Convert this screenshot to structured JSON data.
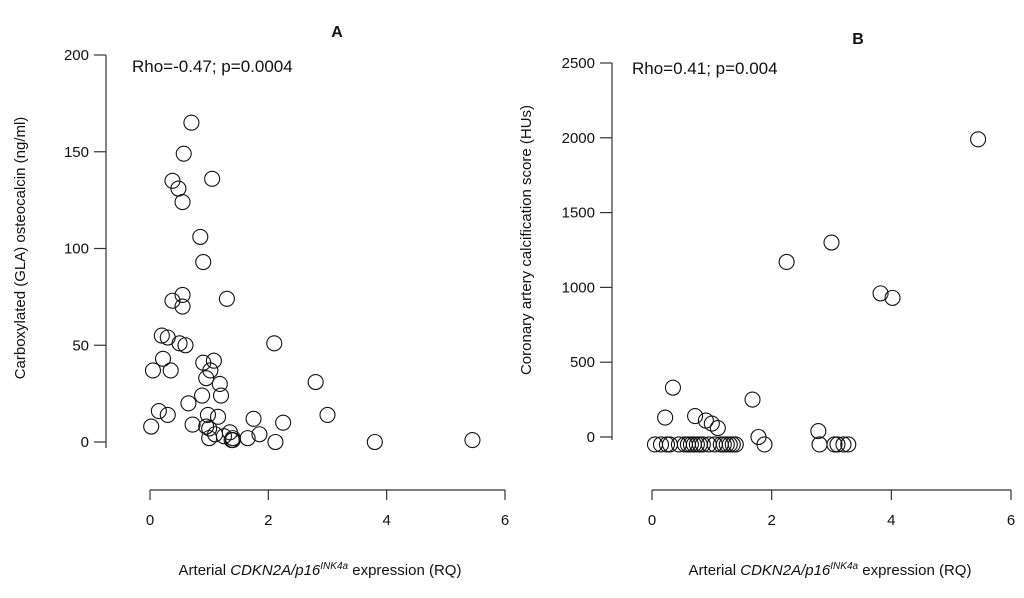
{
  "chart_data": [
    {
      "type": "scatter",
      "panel_label": "A",
      "annotation": "Rho=-0.47; p=0.0004",
      "ylabel": "Carboxylated (GLA) osteocalcin (ng/ml)",
      "xlabel_parts": [
        "Arterial ",
        "CDKN2A/p16",
        "INK4a",
        " expression (RQ)"
      ],
      "xlim": [
        0,
        6
      ],
      "ylim": [
        0,
        200
      ],
      "xticks": [
        0,
        2,
        4,
        6
      ],
      "yticks": [
        0,
        50,
        100,
        150,
        200
      ],
      "grid": false,
      "series": [
        {
          "points": [
            [
              0.02,
              8
            ],
            [
              0.05,
              37
            ],
            [
              0.15,
              16
            ],
            [
              0.2,
              55
            ],
            [
              0.22,
              43
            ],
            [
              0.3,
              14
            ],
            [
              0.3,
              54
            ],
            [
              0.35,
              37
            ],
            [
              0.38,
              135
            ],
            [
              0.38,
              73
            ],
            [
              0.48,
              131
            ],
            [
              0.5,
              51
            ],
            [
              0.55,
              70
            ],
            [
              0.55,
              76
            ],
            [
              0.55,
              124
            ],
            [
              0.57,
              149
            ],
            [
              0.6,
              50
            ],
            [
              0.65,
              20
            ],
            [
              0.7,
              165
            ],
            [
              0.72,
              9
            ],
            [
              0.85,
              106
            ],
            [
              0.88,
              24
            ],
            [
              0.9,
              41
            ],
            [
              0.9,
              93
            ],
            [
              0.95,
              33
            ],
            [
              0.95,
              8
            ],
            [
              0.98,
              14
            ],
            [
              1.0,
              7
            ],
            [
              1.0,
              2
            ],
            [
              1.02,
              37
            ],
            [
              1.05,
              136
            ],
            [
              1.08,
              42
            ],
            [
              1.1,
              4
            ],
            [
              1.15,
              13
            ],
            [
              1.18,
              30
            ],
            [
              1.2,
              24
            ],
            [
              1.25,
              3
            ],
            [
              1.3,
              74
            ],
            [
              1.35,
              5
            ],
            [
              1.38,
              1
            ],
            [
              1.4,
              2
            ],
            [
              1.4,
              1
            ],
            [
              1.65,
              2
            ],
            [
              1.75,
              12
            ],
            [
              1.85,
              4
            ],
            [
              2.1,
              51
            ],
            [
              2.12,
              0
            ],
            [
              2.25,
              10
            ],
            [
              2.8,
              31
            ],
            [
              3.0,
              14
            ],
            [
              3.8,
              0
            ],
            [
              5.45,
              1
            ]
          ]
        }
      ]
    },
    {
      "type": "scatter",
      "panel_label": "B",
      "annotation": "Rho=0.41; p=0.004",
      "ylabel": "Coronary artery calcification score (HUs)",
      "xlabel_parts": [
        "Arterial ",
        "CDKN2A/p16",
        "INK4a",
        " expression (RQ)"
      ],
      "xlim": [
        0,
        6
      ],
      "ylim": [
        0,
        2500
      ],
      "xticks": [
        0,
        2,
        4,
        6
      ],
      "yticks": [
        0,
        500,
        1000,
        1500,
        2000,
        2500
      ],
      "grid": false,
      "series": [
        {
          "points": [
            [
              0.05,
              -50
            ],
            [
              0.15,
              -50
            ],
            [
              0.22,
              130
            ],
            [
              0.25,
              -50
            ],
            [
              0.3,
              -50
            ],
            [
              0.35,
              330
            ],
            [
              0.45,
              -50
            ],
            [
              0.55,
              -50
            ],
            [
              0.6,
              -50
            ],
            [
              0.65,
              -50
            ],
            [
              0.7,
              -50
            ],
            [
              0.72,
              140
            ],
            [
              0.75,
              -50
            ],
            [
              0.8,
              -50
            ],
            [
              0.85,
              -50
            ],
            [
              0.9,
              110
            ],
            [
              0.95,
              -50
            ],
            [
              1.0,
              90
            ],
            [
              1.05,
              -50
            ],
            [
              1.1,
              60
            ],
            [
              1.15,
              -50
            ],
            [
              1.2,
              -50
            ],
            [
              1.25,
              -50
            ],
            [
              1.3,
              -50
            ],
            [
              1.35,
              -50
            ],
            [
              1.4,
              -50
            ],
            [
              1.68,
              250
            ],
            [
              1.78,
              0
            ],
            [
              1.88,
              -50
            ],
            [
              2.25,
              1170
            ],
            [
              2.78,
              40
            ],
            [
              2.8,
              -50
            ],
            [
              3.0,
              1300
            ],
            [
              3.05,
              -50
            ],
            [
              3.1,
              -50
            ],
            [
              3.2,
              -50
            ],
            [
              3.28,
              -50
            ],
            [
              3.82,
              960
            ],
            [
              4.02,
              930
            ],
            [
              5.45,
              1990
            ]
          ]
        }
      ]
    }
  ]
}
